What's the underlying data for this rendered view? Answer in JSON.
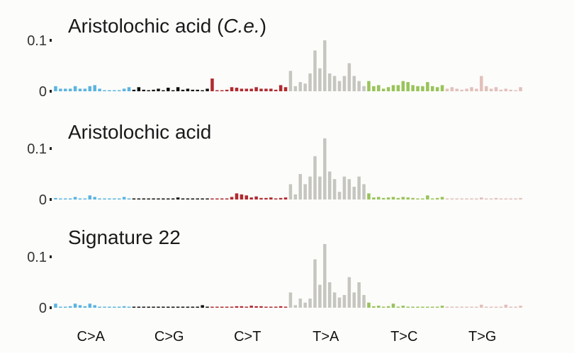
{
  "chart_data": {
    "type": "bar",
    "categories": [
      "C>A",
      "C>G",
      "C>T",
      "T>A",
      "T>C",
      "T>G"
    ],
    "category_colors": [
      "#5bb4e0",
      "#111111",
      "#b02a2f",
      "#c6c5c0",
      "#98c35a",
      "#e2c0bb"
    ],
    "y_ticks": [
      {
        "value": 0,
        "label": "0"
      },
      {
        "value": 0.1,
        "label": "0.1"
      }
    ],
    "grid": false,
    "panels": [
      {
        "title_main": "Aristolochic acid (",
        "title_italic": "C.e.",
        "title_end": ")",
        "ylim": [
          0,
          0.11
        ],
        "values": [
          [
            0.01,
            0.005,
            0.005,
            0.005,
            0.01,
            0.005,
            0.005,
            0.01,
            0.012,
            0.005,
            0.002,
            0.002,
            0.002,
            0.002,
            0.005,
            0.008
          ],
          [
            0.003,
            0.008,
            0.003,
            0.002,
            0.003,
            0.005,
            0.002,
            0.007,
            0.002,
            0.008,
            0.003,
            0.005,
            0.003,
            0.003,
            0.002,
            0.005
          ],
          [
            0.025,
            0.002,
            0.002,
            0.003,
            0.008,
            0.007,
            0.005,
            0.005,
            0.005,
            0.008,
            0.005,
            0.005,
            0.005,
            0.003,
            0.012,
            0.008
          ],
          [
            0.04,
            0.01,
            0.018,
            0.015,
            0.035,
            0.08,
            0.045,
            0.1,
            0.035,
            0.03,
            0.02,
            0.03,
            0.055,
            0.03,
            0.02,
            0.01
          ],
          [
            0.02,
            0.01,
            0.012,
            0.005,
            0.008,
            0.012,
            0.012,
            0.02,
            0.018,
            0.012,
            0.01,
            0.01,
            0.018,
            0.01,
            0.008,
            0.012
          ],
          [
            0.005,
            0.008,
            0.005,
            0.003,
            0.005,
            0.008,
            0.005,
            0.03,
            0.01,
            0.005,
            0.008,
            0.003,
            0.005,
            0.003,
            0.002,
            0.008
          ]
        ]
      },
      {
        "title_main": "Aristolochic acid",
        "ylim": [
          0,
          0.11
        ],
        "values": [
          [
            0.003,
            0.002,
            0.002,
            0.002,
            0.005,
            0.002,
            0.002,
            0.008,
            0.005,
            0.002,
            0.001,
            0.001,
            0.001,
            0.001,
            0.005,
            0.001
          ],
          [
            0.001,
            0.001,
            0.002,
            0.001,
            0.002,
            0.002,
            0.002,
            0.002,
            0.001,
            0.004,
            0.001,
            0.001,
            0.002,
            0.001,
            0.001,
            0.001
          ],
          [
            0.002,
            0.001,
            0.001,
            0.002,
            0.005,
            0.012,
            0.01,
            0.008,
            0.004,
            0.006,
            0.003,
            0.003,
            0.004,
            0.002,
            0.003,
            0.004
          ],
          [
            0.03,
            0.01,
            0.05,
            0.03,
            0.045,
            0.085,
            0.045,
            0.12,
            0.055,
            0.04,
            0.015,
            0.045,
            0.04,
            0.025,
            0.045,
            0.03
          ],
          [
            0.012,
            0.004,
            0.005,
            0.003,
            0.004,
            0.005,
            0.003,
            0.005,
            0.004,
            0.003,
            0.002,
            0.002,
            0.008,
            0.002,
            0.003,
            0.005
          ],
          [
            0.002,
            0.001,
            0.002,
            0.001,
            0.002,
            0.002,
            0.002,
            0.004,
            0.002,
            0.002,
            0.003,
            0.002,
            0.002,
            0.001,
            0.001,
            0.003
          ]
        ]
      },
      {
        "title_main": "Signature 22",
        "ylim": [
          0,
          0.11
        ],
        "values": [
          [
            0.008,
            0.002,
            0.002,
            0.003,
            0.008,
            0.005,
            0.003,
            0.008,
            0.005,
            0.002,
            0.001,
            0.002,
            0.002,
            0.001,
            0.003,
            0.002
          ],
          [
            0.001,
            0.001,
            0.001,
            0.001,
            0.002,
            0.002,
            0.001,
            0.002,
            0.001,
            0.002,
            0.001,
            0.002,
            0.002,
            0.001,
            0.005,
            0.002
          ],
          [
            0.002,
            0.001,
            0.001,
            0.001,
            0.002,
            0.003,
            0.003,
            0.002,
            0.004,
            0.003,
            0.003,
            0.002,
            0.002,
            0.001,
            0.003,
            0.002
          ],
          [
            0.03,
            0.005,
            0.018,
            0.01,
            0.018,
            0.095,
            0.045,
            0.125,
            0.05,
            0.03,
            0.02,
            0.025,
            0.06,
            0.03,
            0.05,
            0.025
          ],
          [
            0.01,
            0.003,
            0.004,
            0.002,
            0.003,
            0.008,
            0.002,
            0.004,
            0.002,
            0.002,
            0.002,
            0.002,
            0.002,
            0.002,
            0.001,
            0.004
          ],
          [
            0.002,
            0.001,
            0.002,
            0.001,
            0.001,
            0.002,
            0.001,
            0.006,
            0.002,
            0.001,
            0.001,
            0.001,
            0.006,
            0.002,
            0.001,
            0.004
          ]
        ]
      }
    ]
  }
}
